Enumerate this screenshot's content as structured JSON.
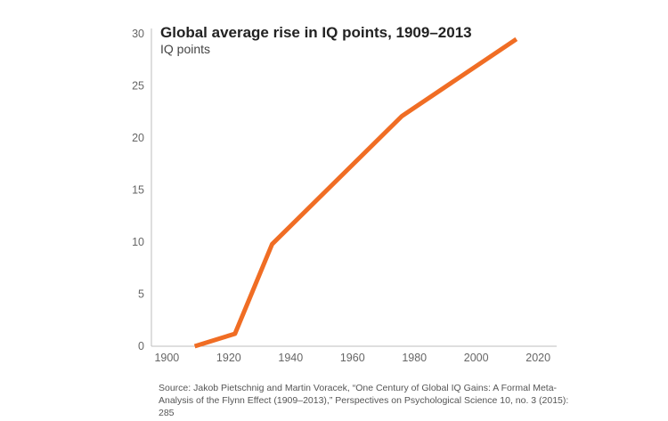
{
  "chart_data": {
    "type": "line",
    "title": "Global average rise in IQ points, 1909–2013",
    "subtitle": "IQ points",
    "xlabel": "",
    "ylabel": "IQ points",
    "xlim": [
      1895,
      2026
    ],
    "ylim": [
      0,
      30
    ],
    "x_ticks": [
      1900,
      1920,
      1940,
      1960,
      1980,
      2000,
      2020
    ],
    "y_ticks": [
      0,
      5,
      10,
      15,
      20,
      25,
      30
    ],
    "grid": false,
    "color": "#f06d24",
    "series": [
      {
        "name": "Global average rise in IQ points",
        "x": [
          1909,
          1922,
          1934,
          1976,
          2013
        ],
        "y": [
          0,
          1.2,
          9.8,
          22.1,
          29.5
        ]
      }
    ]
  },
  "source_text": "Source: Jakob Pietschnig and Martin Voracek, “One Century of Global IQ Gains: A Formal Meta-Analysis of the Flynn Effect (1909–2013),” Perspectives on Psychological Science 10, no. 3 (2015): 285"
}
